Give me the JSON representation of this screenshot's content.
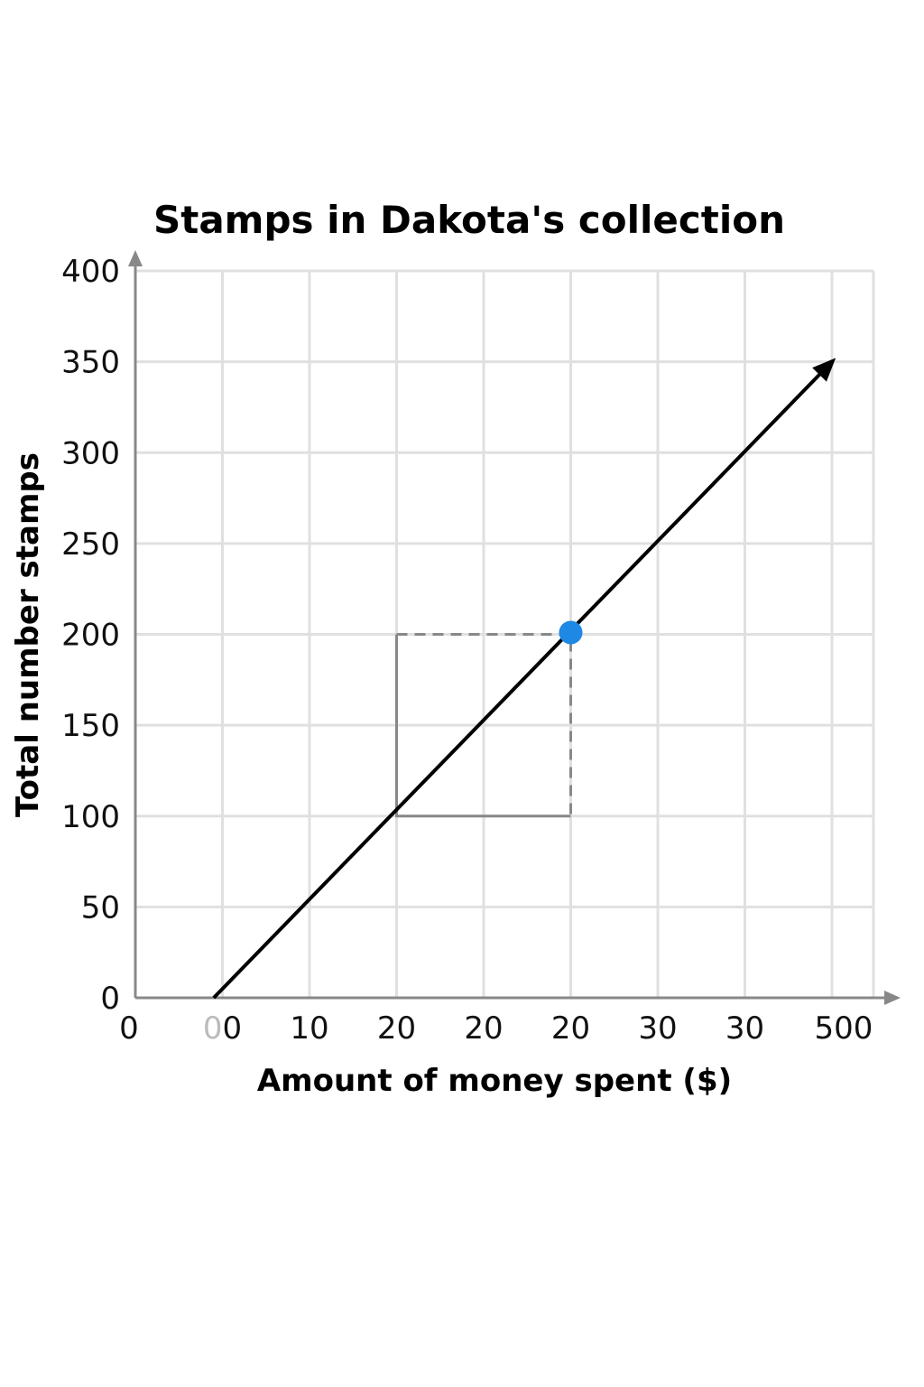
{
  "chart_data": {
    "type": "line",
    "title": "Stamps in Dakota's collection",
    "xlabel": "Amount of money spent ($)",
    "ylabel": "Total number stamps",
    "x_tick_labels": [
      "0",
      "00",
      "10",
      "20",
      "20",
      "20",
      "30",
      "30",
      "500"
    ],
    "y_ticks": [
      0,
      50,
      100,
      150,
      200,
      250,
      300,
      350,
      400
    ],
    "y_tick_labels": [
      "0",
      "50",
      "100",
      "150",
      "200",
      "250",
      "300",
      "350",
      "400"
    ],
    "xlim": [
      0,
      8.5
    ],
    "ylim": [
      0,
      400
    ],
    "grid": true,
    "series": [
      {
        "color": "#000000",
        "points": [
          {
            "x": 0.9,
            "y": 0
          },
          {
            "x": 8,
            "y": 350
          }
        ]
      }
    ],
    "highlight_point": {
      "x": 5,
      "y": 201,
      "color": "#1e88e5"
    },
    "slope_triangle": {
      "x0": 3,
      "x1": 5,
      "y0": 100,
      "y1": 200
    }
  }
}
